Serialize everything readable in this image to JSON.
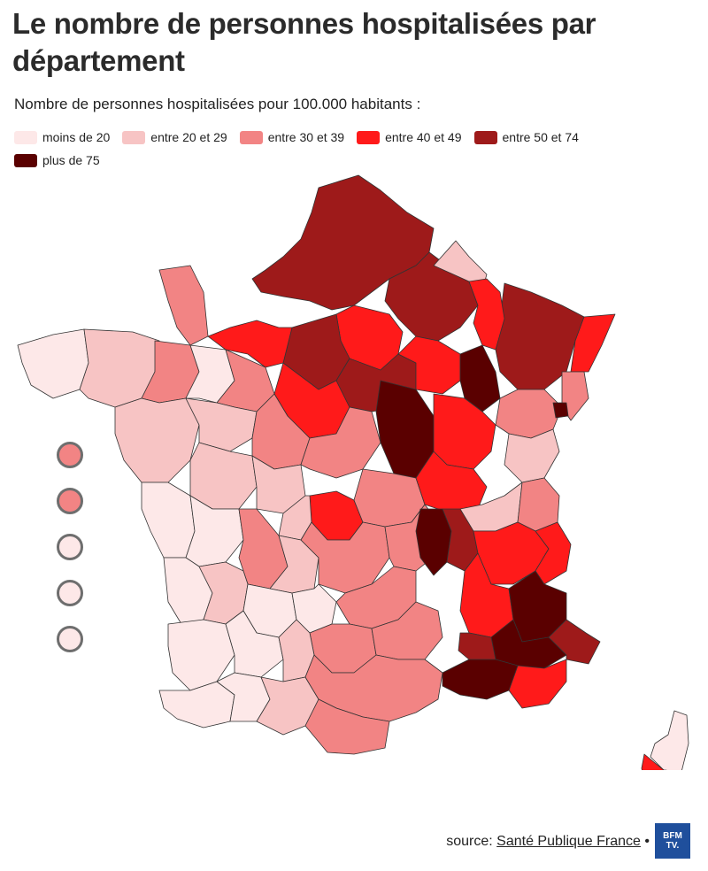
{
  "header": {
    "title": "Le nombre de personnes hospitalisées par département",
    "subtitle": "Nombre de personnes hospitalisées pour 100.000 habitants :"
  },
  "legend": {
    "items": [
      {
        "label": "moins de 20",
        "color": "#fde8e8"
      },
      {
        "label": "entre 20 et 29",
        "color": "#f7c4c4"
      },
      {
        "label": "entre 30 et 39",
        "color": "#f28484"
      },
      {
        "label": "entre 40 et 49",
        "color": "#ff1a1a"
      },
      {
        "label": "entre 50 et 74",
        "color": "#9e1a1a"
      },
      {
        "label": "plus de 75",
        "color": "#5a0000"
      }
    ]
  },
  "map": {
    "regions_by_class": {
      "nord_normandie_picardie": "entre 50 et 74",
      "ile_de_france_paris": "entre 40 et 49",
      "grand_est_alsace": "entre 40 et 49",
      "bourgogne_centre_est": "plus de 75",
      "rhone_alpes_sud": "entre 40 et 49",
      "paca_alpes": "plus de 75",
      "cote_azur": "entre 40 et 49",
      "centre_ouest": "entre 20 et 29",
      "bretagne": "moins de 20",
      "sud_ouest": "moins de 20",
      "corse_sud": "entre 40 et 49",
      "corse_nord": "moins de 20"
    },
    "overseas_markers": [
      {
        "class": "entre 30 et 39",
        "color": "#f28484"
      },
      {
        "class": "entre 30 et 39",
        "color": "#f28484"
      },
      {
        "class": "moins de 20",
        "color": "#fde8e8"
      },
      {
        "class": "moins de 20",
        "color": "#fde8e8"
      },
      {
        "class": "moins de 20",
        "color": "#fde8e8"
      }
    ]
  },
  "footer": {
    "source_prefix": "source: ",
    "source_link": "Santé Publique France",
    "bullet": " •",
    "logo_line1": "BFM",
    "logo_line2": "TV."
  }
}
